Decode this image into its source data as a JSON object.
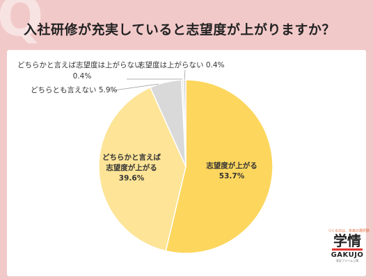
{
  "title": "入社研修が充実していると志望度が上がりますか？",
  "badge": "Q",
  "colors": {
    "background": "#f2c9c9",
    "slice_up": "#fdd65e",
    "slice_rather_up": "#fde497",
    "slice_neither": "#d9d9d9",
    "slice_rather_not": "#e8e8e8",
    "slice_not": "#cfcfcf"
  },
  "chart_data": {
    "type": "pie",
    "start_angle_deg": 0,
    "direction": "clockwise",
    "slices": [
      {
        "label": "志望度が上がる",
        "lines": [
          "志望度が上がる",
          "53.7%"
        ],
        "value": 53.7,
        "color": "#fdd65e",
        "placement": "inside"
      },
      {
        "label": "どちらかと言えば志望度が上がる",
        "lines": [
          "どちらかと言えば",
          "志望度が上がる",
          "39.6%"
        ],
        "value": 39.6,
        "color": "#fde497",
        "placement": "inside"
      },
      {
        "label": "どちらとも言えない",
        "lines": [
          "どちらとも言えない 5.9%"
        ],
        "value": 5.9,
        "color": "#d9d9d9",
        "placement": "outside"
      },
      {
        "label": "どちらかと言えば志望度は上がらない",
        "lines": [
          "どちらかと言えば志望度は上がらない",
          "0.4%"
        ],
        "value": 0.4,
        "color": "#e8e8e8",
        "placement": "outside"
      },
      {
        "label": "志望度は上がらない",
        "lines": [
          "志望度は上がらない 0.4%"
        ],
        "value": 0.4,
        "color": "#cfcfcf",
        "placement": "outside"
      }
    ]
  },
  "logo": {
    "tagline": "つくるのは、未来の選択肢",
    "name": "学情",
    "name_en": "GAKUJO",
    "sub": "東証プライム上場"
  }
}
